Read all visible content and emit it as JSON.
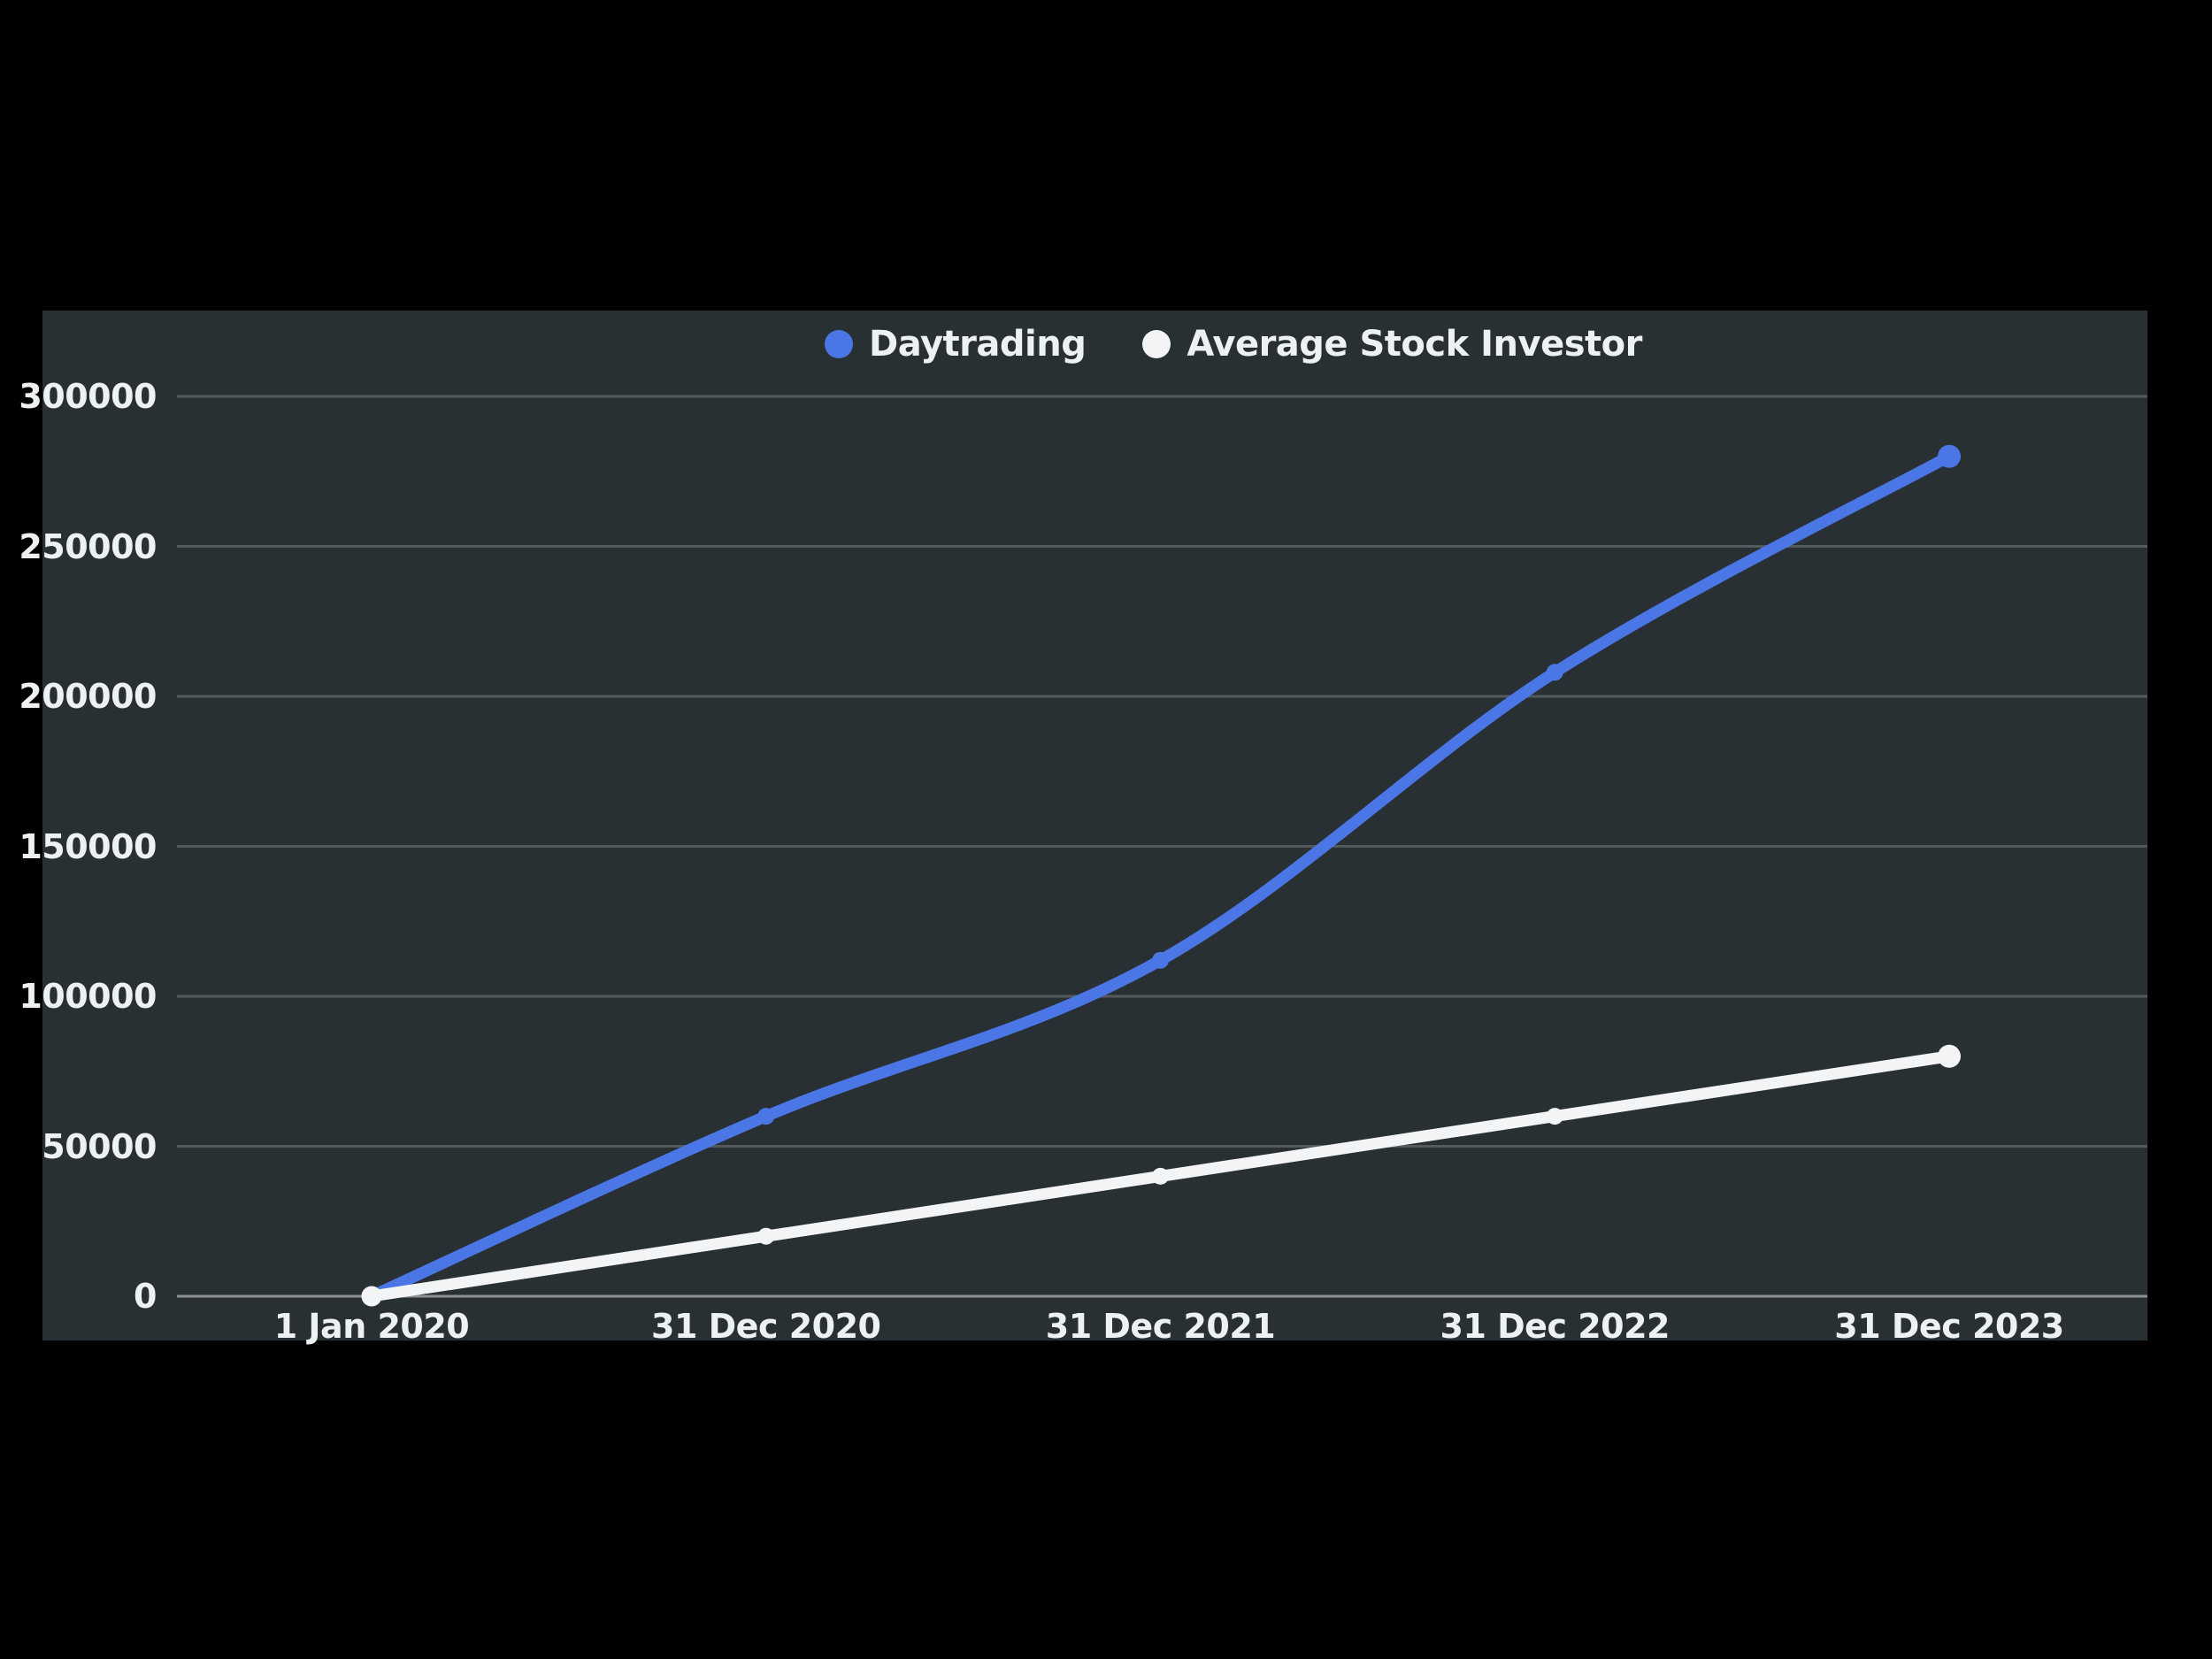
{
  "chart_data": {
    "type": "line",
    "title": "",
    "xlabel": "",
    "ylabel": "",
    "categories": [
      "1 Jan 2020",
      "31 Dec 2020",
      "31 Dec 2021",
      "31 Dec 2022",
      "31 Dec 2023"
    ],
    "series": [
      {
        "name": "Daytrading",
        "color": "#4B77E6",
        "curve": "smooth",
        "values": [
          0,
          60000,
          112000,
          208000,
          280000
        ]
      },
      {
        "name": "Average Stock Investor",
        "color": "#F2F4F5",
        "curve": "straight",
        "values": [
          0,
          20000,
          40000,
          60000,
          80000
        ]
      }
    ],
    "y_ticks": [
      0,
      50000,
      100000,
      150000,
      200000,
      250000,
      300000
    ],
    "ylim": [
      0,
      300000
    ],
    "grid": "horizontal",
    "legend_position": "top-center"
  },
  "colors": {
    "page_bg": "#000000",
    "panel_bg": "#293034",
    "gridline": "#54595D",
    "zero_line": "#8C9093",
    "text": "#EEF1F2"
  }
}
